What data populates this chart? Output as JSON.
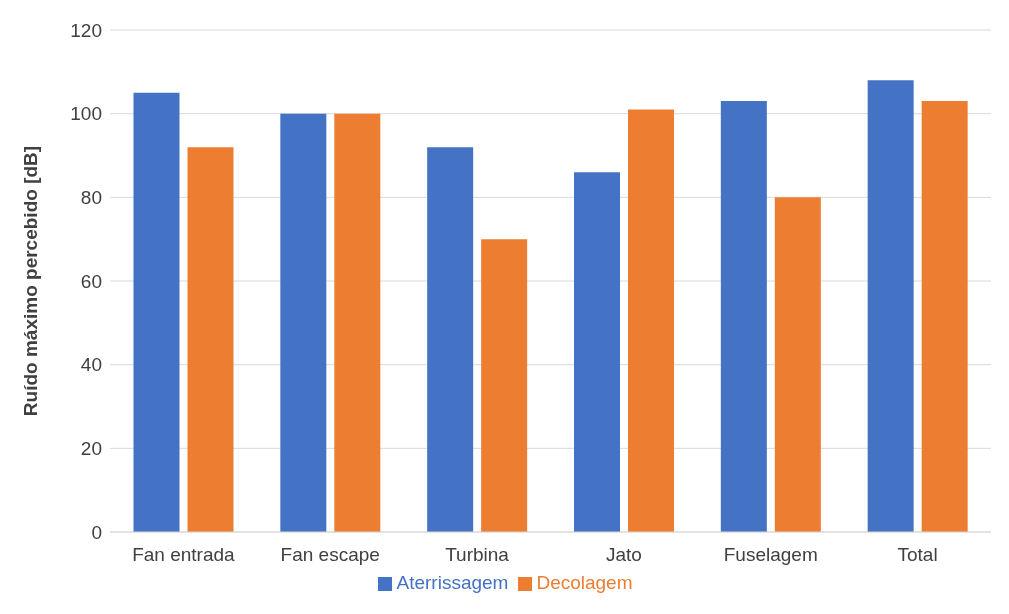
{
  "chart_data": {
    "type": "bar",
    "ylabel": "Ruído máximo percebido [dB]",
    "categories": [
      "Fan entrada",
      "Fan escape",
      "Turbina",
      "Jato",
      "Fuselagem",
      "Total"
    ],
    "series": [
      {
        "name": "Aterrissagem",
        "color": "#4472c4",
        "values": [
          105,
          100,
          92,
          86,
          103,
          108
        ]
      },
      {
        "name": "Decolagem",
        "color": "#ed7d31",
        "values": [
          92,
          100,
          70,
          101,
          80,
          103
        ]
      }
    ],
    "ylim": [
      0,
      120
    ],
    "yticks": [
      0,
      20,
      40,
      60,
      80,
      100,
      120
    ],
    "grid": "y",
    "legend": "bottom"
  }
}
